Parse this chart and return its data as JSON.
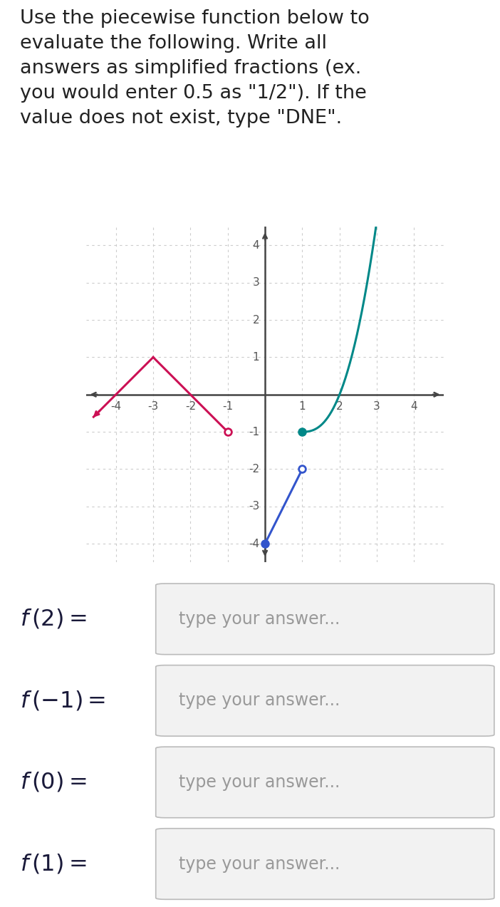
{
  "title_text": "Use the piecewise function below to\nevaluate the following. Write all\nanswers as simplified fractions (ex.\nyou would enter 0.5 as \"1/2\"). If the\nvalue does not exist, type \"DNE\".",
  "xlim": [
    -4.8,
    4.8
  ],
  "ylim": [
    -4.5,
    4.5
  ],
  "grid_color": "#cccccc",
  "axis_color": "#444444",
  "bg_color": "#ffffff",
  "red_color": "#cc1155",
  "teal_color": "#008888",
  "blue_color": "#3355cc",
  "box_bg": "#f2f2f2",
  "box_edge": "#bbbbbb",
  "label_color": "#1a1a3a",
  "placeholder_color": "#999999",
  "tick_color": "#555555",
  "questions": [
    {
      "label": "$f\\,(2) =$",
      "placeholder": "type your answer..."
    },
    {
      "label": "$f\\,(-1) =$",
      "placeholder": "type your answer..."
    },
    {
      "label": "$f\\,(0) =$",
      "placeholder": "type your answer..."
    },
    {
      "label": "$f\\,(1) =$",
      "placeholder": "type your answer..."
    }
  ]
}
